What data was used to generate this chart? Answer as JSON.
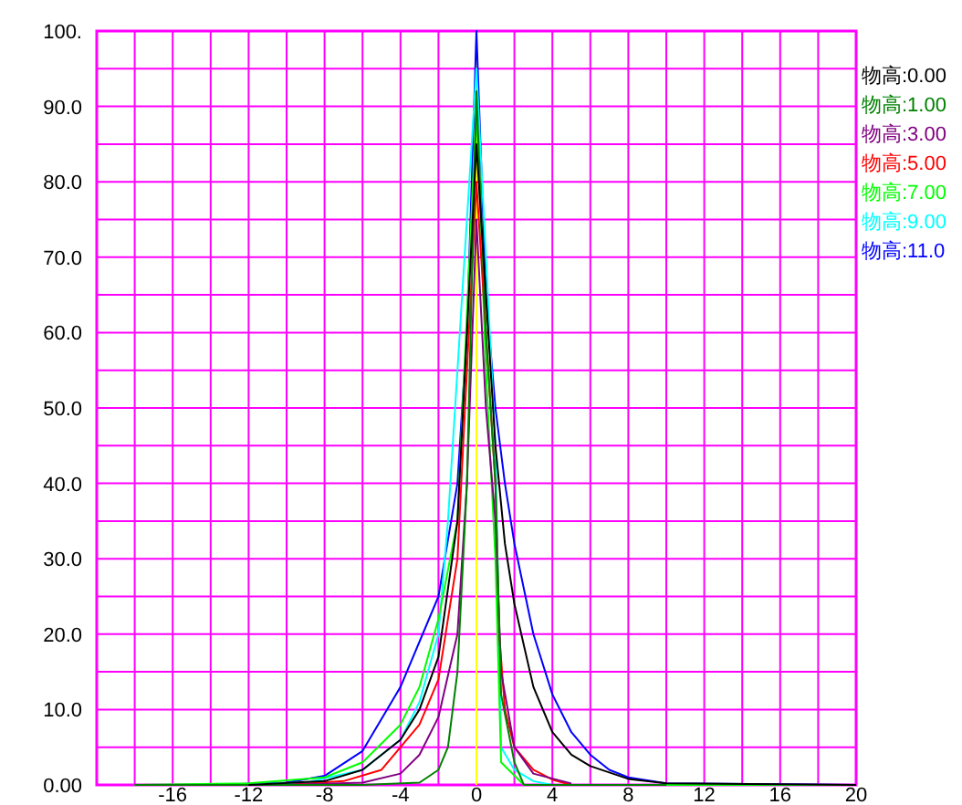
{
  "chart_data": {
    "type": "line",
    "xlim": [
      -20,
      20
    ],
    "xticks": [
      {
        "value": -20,
        "label": null
      },
      {
        "value": -18,
        "label": null
      },
      -16,
      {
        "value": -14,
        "label": null
      },
      -12,
      {
        "value": -10,
        "label": null
      },
      -8,
      {
        "value": -6,
        "label": null
      },
      -4,
      {
        "value": -2,
        "label": null
      },
      0,
      {
        "value": 2,
        "label": null
      },
      4,
      {
        "value": 6,
        "label": null
      },
      8,
      {
        "value": 10,
        "label": null
      },
      12,
      {
        "value": 14,
        "label": null
      },
      16,
      {
        "value": 18,
        "label": null
      },
      20
    ],
    "ylim": [
      0,
      100
    ],
    "yticks": [
      {
        "value": 0,
        "label": "0.00"
      },
      {
        "value": 5,
        "label": null
      },
      {
        "value": 10,
        "label": "10.0"
      },
      {
        "value": 15,
        "label": null
      },
      {
        "value": 20,
        "label": "20.0"
      },
      {
        "value": 25,
        "label": null
      },
      {
        "value": 30,
        "label": "30.0"
      },
      {
        "value": 35,
        "label": null
      },
      {
        "value": 40,
        "label": "40.0"
      },
      {
        "value": 45,
        "label": null
      },
      {
        "value": 50,
        "label": "50.0"
      },
      {
        "value": 55,
        "label": null
      },
      {
        "value": 60,
        "label": "60.0"
      },
      {
        "value": 65,
        "label": null
      },
      {
        "value": 70,
        "label": "70.0"
      },
      {
        "value": 75,
        "label": null
      },
      {
        "value": 80,
        "label": "80.0"
      },
      {
        "value": 85,
        "label": null
      },
      {
        "value": 90,
        "label": "90.0"
      },
      {
        "value": 95,
        "label": null
      },
      {
        "value": 100,
        "label": "100."
      }
    ],
    "grid": true,
    "legend": "right",
    "marker": "none",
    "line_style": "solid",
    "ref_lines": [
      {
        "axis": "x",
        "value": 0,
        "label": null,
        "color": "#ffff00"
      }
    ],
    "series": [
      {
        "name": "物高:0.00",
        "color": "#000000",
        "x": [
          -12,
          -8,
          -6,
          -4,
          -3,
          -2,
          -1,
          0,
          1,
          1.5,
          2,
          3,
          4,
          5,
          6,
          8,
          10,
          20
        ],
        "values": [
          0,
          0.5,
          2,
          6,
          10,
          17,
          35,
          85,
          45,
          32,
          24,
          13,
          7,
          4,
          2.5,
          0.8,
          0.2,
          0
        ]
      },
      {
        "name": "物高:1.00",
        "color": "#008000",
        "x": [
          -18,
          -6,
          -3,
          -2,
          -1.5,
          -1,
          -0.5,
          0,
          0.5,
          1,
          1.3,
          2,
          2.5,
          10
        ],
        "values": [
          0,
          0,
          0.3,
          2,
          5,
          15,
          40,
          92,
          60,
          40,
          12,
          3,
          0,
          0
        ]
      },
      {
        "name": "物高:3.00",
        "color": "#800080",
        "x": [
          -10,
          -6,
          -4,
          -3,
          -2,
          -1,
          -0.5,
          0,
          0.5,
          1,
          1.3,
          2,
          3,
          5
        ],
        "values": [
          0,
          0.3,
          1.5,
          4,
          9,
          20,
          40,
          75,
          50,
          35,
          15,
          5,
          1.5,
          0.2
        ]
      },
      {
        "name": "物高:5.00",
        "color": "#ff0000",
        "x": [
          -10,
          -7,
          -5,
          -4,
          -3,
          -2,
          -1,
          0,
          1,
          1.2,
          1.5,
          2,
          3,
          4,
          5
        ],
        "values": [
          0,
          0.5,
          2,
          5,
          8,
          14,
          30,
          80,
          40,
          20,
          10,
          5,
          2,
          0.7,
          0
        ]
      },
      {
        "name": "物高:7.00",
        "color": "#00ff00",
        "x": [
          -18,
          -12,
          -8,
          -6,
          -4,
          -3,
          -2,
          -1,
          0,
          0.5,
          1,
          1.3,
          2.5,
          20
        ],
        "values": [
          0,
          0.2,
          1,
          3,
          8,
          13,
          22,
          35,
          90,
          55,
          30,
          3,
          0,
          0
        ]
      },
      {
        "name": "物高:9.00",
        "color": "#00ffff",
        "x": [
          -14,
          -9,
          -6,
          -4,
          -3,
          -2,
          -1.5,
          -1,
          -0.5,
          0,
          0.5,
          1,
          1.3,
          2,
          3,
          4,
          12
        ],
        "values": [
          0,
          0.3,
          2,
          6,
          11,
          20,
          35,
          55,
          75,
          95,
          70,
          45,
          5,
          2,
          0.5,
          0,
          0
        ]
      },
      {
        "name": "物高:11.0",
        "color": "#0000ff",
        "x": [
          -14,
          -10,
          -8,
          -6,
          -4,
          -2,
          -1,
          -0.5,
          0,
          0.5,
          1,
          1.5,
          2,
          3,
          4,
          5,
          6,
          7,
          8,
          10,
          20
        ],
        "values": [
          0,
          0.3,
          1.2,
          4.5,
          13,
          25,
          40,
          60,
          100,
          65,
          50,
          40,
          32,
          20,
          12,
          7,
          4,
          2,
          1,
          0.2,
          0
        ]
      }
    ]
  }
}
